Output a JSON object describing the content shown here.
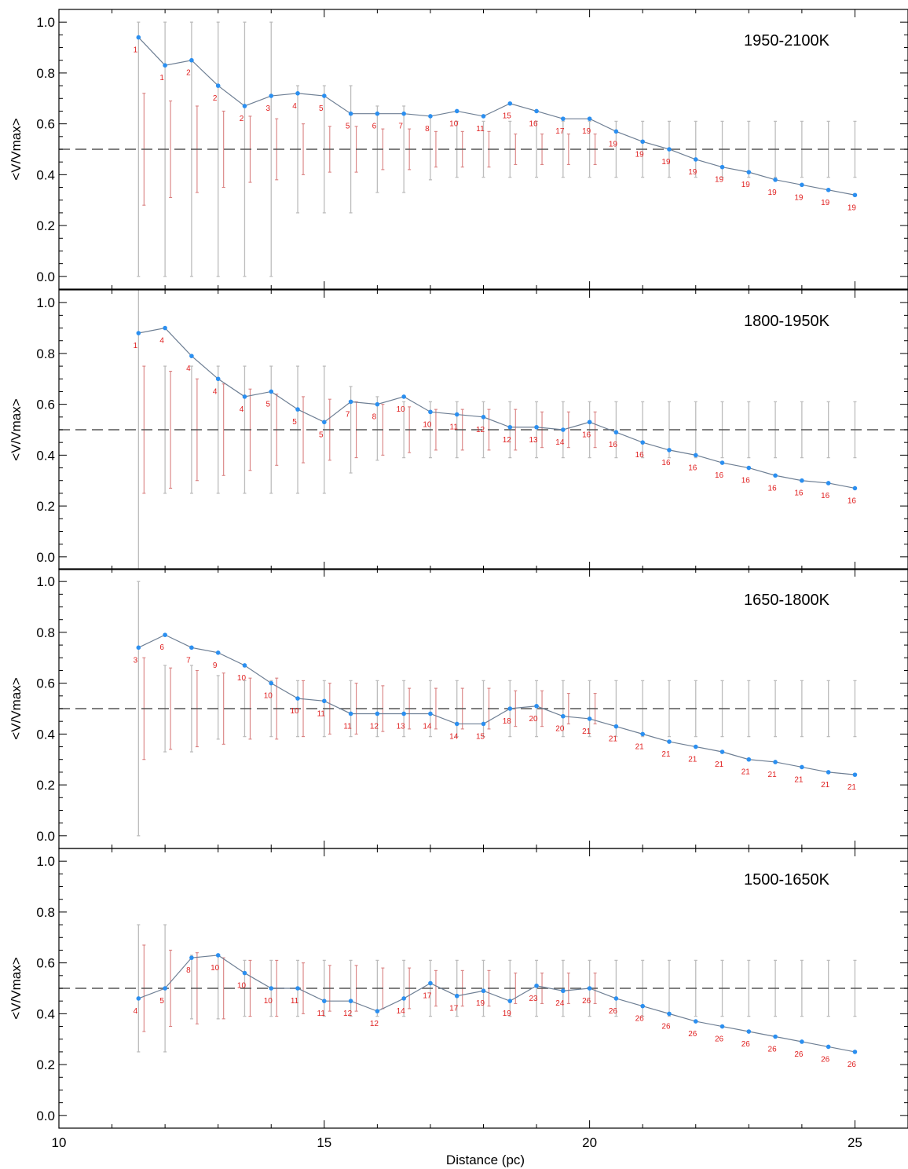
{
  "figure": {
    "xlabel": "Distance (pc)",
    "ylabel": "<V/Vmax>",
    "xlim": [
      10,
      26
    ],
    "ylim": [
      -0.05,
      1.05
    ],
    "xticks": [
      10,
      15,
      20,
      25
    ],
    "yticks": [
      0.0,
      0.2,
      0.4,
      0.6,
      0.8,
      1.0
    ],
    "ytick_labels": [
      "0.0",
      "0.2",
      "0.4",
      "0.6",
      "0.8",
      "1.0"
    ],
    "reference_line": 0.5,
    "colors": {
      "line": "#6e7f94",
      "points": "#2b8ff0",
      "counts": "#e02020",
      "theory_err": "#bdbdbd",
      "obs_err": "#d98080",
      "refline": "#555555",
      "axes": "#000000"
    }
  },
  "chart_data": [
    {
      "type": "line",
      "title": "1950-2100K",
      "x": [
        11.5,
        12,
        12.5,
        13,
        13.5,
        14,
        14.5,
        15,
        15.5,
        16,
        16.5,
        17,
        17.5,
        18,
        18.5,
        19,
        19.5,
        20,
        20.5,
        21,
        21.5,
        22,
        22.5,
        23,
        23.5,
        24,
        24.5,
        25
      ],
      "series": [
        {
          "values": [
            0.94,
            0.83,
            0.85,
            0.75,
            0.67,
            0.71,
            0.72,
            0.71,
            0.64,
            0.64,
            0.64,
            0.63,
            0.65,
            0.63,
            0.68,
            0.65,
            0.62,
            0.62,
            0.57,
            0.53,
            0.5,
            0.46,
            0.43,
            0.41,
            0.38,
            0.36,
            0.34,
            0.32
          ]
        }
      ],
      "point_labels": [
        "1",
        "1",
        "2",
        "2",
        "2",
        "3",
        "4",
        "5",
        "5",
        "6",
        "7",
        "8",
        "10",
        "11",
        "15",
        "16",
        "17",
        "19",
        "19",
        "19",
        "19",
        "19",
        "19",
        "19",
        "19",
        "19",
        "19",
        "19"
      ],
      "theory_errors": [
        [
          0.0,
          1.0
        ],
        [
          0.0,
          1.0
        ],
        [
          0.0,
          1.0
        ],
        [
          0.0,
          1.0
        ],
        [
          0.0,
          1.0
        ],
        [
          0.0,
          1.0
        ],
        [
          0.25,
          0.75
        ],
        [
          0.25,
          0.75
        ],
        [
          0.25,
          0.75
        ],
        [
          0.33,
          0.67
        ],
        [
          0.33,
          0.67
        ],
        [
          0.38,
          0.63
        ],
        [
          0.39,
          0.61
        ],
        [
          0.39,
          0.61
        ],
        [
          0.39,
          0.61
        ],
        [
          0.39,
          0.61
        ],
        [
          0.39,
          0.61
        ],
        [
          0.39,
          0.61
        ],
        [
          0.39,
          0.61
        ],
        [
          0.39,
          0.61
        ],
        [
          0.39,
          0.61
        ],
        [
          0.39,
          0.61
        ],
        [
          0.39,
          0.61
        ],
        [
          0.39,
          0.61
        ],
        [
          0.39,
          0.61
        ],
        [
          0.39,
          0.61
        ],
        [
          0.39,
          0.61
        ],
        [
          0.39,
          0.61
        ]
      ],
      "obs_errors": [
        [
          0.28,
          0.72
        ],
        [
          0.31,
          0.69
        ],
        [
          0.33,
          0.67
        ],
        [
          0.35,
          0.65
        ],
        [
          0.37,
          0.63
        ],
        [
          0.38,
          0.62
        ],
        [
          0.4,
          0.6
        ],
        [
          0.41,
          0.59
        ],
        [
          0.41,
          0.59
        ],
        [
          0.42,
          0.58
        ],
        [
          0.42,
          0.58
        ],
        [
          0.43,
          0.57
        ],
        [
          0.43,
          0.57
        ],
        [
          0.43,
          0.57
        ],
        [
          0.44,
          0.56
        ],
        [
          0.44,
          0.56
        ],
        [
          0.44,
          0.56
        ],
        [
          0.44,
          0.56
        ]
      ]
    },
    {
      "type": "line",
      "title": "1800-1950K",
      "x": [
        11.5,
        12,
        12.5,
        13,
        13.5,
        14,
        14.5,
        15,
        15.5,
        16,
        16.5,
        17,
        17.5,
        18,
        18.5,
        19,
        19.5,
        20,
        20.5,
        21,
        21.5,
        22,
        22.5,
        23,
        23.5,
        24,
        24.5,
        25
      ],
      "series": [
        {
          "values": [
            0.88,
            0.9,
            0.79,
            0.7,
            0.63,
            0.65,
            0.58,
            0.53,
            0.61,
            0.6,
            0.63,
            0.57,
            0.56,
            0.55,
            0.51,
            0.51,
            0.5,
            0.53,
            0.49,
            0.45,
            0.42,
            0.4,
            0.37,
            0.35,
            0.32,
            0.3,
            0.29,
            0.27
          ]
        }
      ],
      "point_labels": [
        "1",
        "4",
        "4",
        "4",
        "4",
        "5",
        "5",
        "5",
        "7",
        "8",
        "10",
        "10",
        "11",
        "12",
        "12",
        "13",
        "14",
        "16",
        "16",
        "16",
        "16",
        "16",
        "16",
        "16",
        "16",
        "16",
        "16",
        "16"
      ],
      "theory_errors": [
        [
          -0.05,
          1.05
        ],
        [
          0.25,
          0.75
        ],
        [
          0.25,
          0.75
        ],
        [
          0.25,
          0.75
        ],
        [
          0.25,
          0.75
        ],
        [
          0.25,
          0.75
        ],
        [
          0.25,
          0.75
        ],
        [
          0.25,
          0.75
        ],
        [
          0.33,
          0.67
        ],
        [
          0.38,
          0.63
        ],
        [
          0.39,
          0.61
        ],
        [
          0.39,
          0.61
        ],
        [
          0.39,
          0.61
        ],
        [
          0.39,
          0.61
        ],
        [
          0.39,
          0.61
        ],
        [
          0.39,
          0.61
        ],
        [
          0.39,
          0.61
        ],
        [
          0.39,
          0.61
        ],
        [
          0.39,
          0.61
        ],
        [
          0.39,
          0.61
        ],
        [
          0.39,
          0.61
        ],
        [
          0.39,
          0.61
        ],
        [
          0.39,
          0.61
        ],
        [
          0.39,
          0.61
        ],
        [
          0.39,
          0.61
        ],
        [
          0.39,
          0.61
        ],
        [
          0.39,
          0.61
        ],
        [
          0.39,
          0.61
        ]
      ],
      "obs_errors": [
        [
          0.25,
          0.75
        ],
        [
          0.27,
          0.73
        ],
        [
          0.3,
          0.7
        ],
        [
          0.32,
          0.68
        ],
        [
          0.34,
          0.66
        ],
        [
          0.36,
          0.64
        ],
        [
          0.37,
          0.63
        ],
        [
          0.38,
          0.62
        ],
        [
          0.39,
          0.61
        ],
        [
          0.4,
          0.6
        ],
        [
          0.41,
          0.59
        ],
        [
          0.42,
          0.58
        ],
        [
          0.42,
          0.58
        ],
        [
          0.42,
          0.58
        ],
        [
          0.42,
          0.58
        ],
        [
          0.43,
          0.57
        ],
        [
          0.43,
          0.57
        ],
        [
          0.43,
          0.57
        ]
      ]
    },
    {
      "type": "line",
      "title": "1650-1800K",
      "x": [
        11.5,
        12,
        12.5,
        13,
        13.5,
        14,
        14.5,
        15,
        15.5,
        16,
        16.5,
        17,
        17.5,
        18,
        18.5,
        19,
        19.5,
        20,
        20.5,
        21,
        21.5,
        22,
        22.5,
        23,
        23.5,
        24,
        24.5,
        25
      ],
      "series": [
        {
          "values": [
            0.74,
            0.79,
            0.74,
            0.72,
            0.67,
            0.6,
            0.54,
            0.53,
            0.48,
            0.48,
            0.48,
            0.48,
            0.44,
            0.44,
            0.5,
            0.51,
            0.47,
            0.46,
            0.43,
            0.4,
            0.37,
            0.35,
            0.33,
            0.3,
            0.29,
            0.27,
            0.25,
            0.24
          ]
        }
      ],
      "point_labels": [
        "3",
        "6",
        "7",
        "9",
        "10",
        "10",
        "10",
        "11",
        "11",
        "12",
        "13",
        "14",
        "14",
        "15",
        "18",
        "20",
        "20",
        "21",
        "21",
        "21",
        "21",
        "21",
        "21",
        "21",
        "21",
        "21",
        "21",
        "21"
      ],
      "theory_errors": [
        [
          0.0,
          1.0
        ],
        [
          0.33,
          0.67
        ],
        [
          0.33,
          0.67
        ],
        [
          0.38,
          0.63
        ],
        [
          0.39,
          0.61
        ],
        [
          0.39,
          0.61
        ],
        [
          0.39,
          0.61
        ],
        [
          0.39,
          0.61
        ],
        [
          0.39,
          0.61
        ],
        [
          0.39,
          0.61
        ],
        [
          0.39,
          0.61
        ],
        [
          0.39,
          0.61
        ],
        [
          0.39,
          0.61
        ],
        [
          0.39,
          0.61
        ],
        [
          0.39,
          0.61
        ],
        [
          0.39,
          0.61
        ],
        [
          0.39,
          0.61
        ],
        [
          0.39,
          0.61
        ],
        [
          0.39,
          0.61
        ],
        [
          0.39,
          0.61
        ],
        [
          0.39,
          0.61
        ],
        [
          0.39,
          0.61
        ],
        [
          0.39,
          0.61
        ],
        [
          0.39,
          0.61
        ],
        [
          0.39,
          0.61
        ],
        [
          0.39,
          0.61
        ],
        [
          0.39,
          0.61
        ],
        [
          0.39,
          0.61
        ]
      ],
      "obs_errors": [
        [
          0.3,
          0.7
        ],
        [
          0.34,
          0.66
        ],
        [
          0.35,
          0.65
        ],
        [
          0.36,
          0.64
        ],
        [
          0.38,
          0.62
        ],
        [
          0.38,
          0.62
        ],
        [
          0.39,
          0.61
        ],
        [
          0.4,
          0.6
        ],
        [
          0.4,
          0.6
        ],
        [
          0.41,
          0.59
        ],
        [
          0.42,
          0.58
        ],
        [
          0.42,
          0.58
        ],
        [
          0.42,
          0.58
        ],
        [
          0.42,
          0.58
        ],
        [
          0.43,
          0.57
        ],
        [
          0.43,
          0.57
        ],
        [
          0.44,
          0.56
        ],
        [
          0.44,
          0.56
        ]
      ]
    },
    {
      "type": "line",
      "title": "1500-1650K",
      "x": [
        11.5,
        12,
        12.5,
        13,
        13.5,
        14,
        14.5,
        15,
        15.5,
        16,
        16.5,
        17,
        17.5,
        18,
        18.5,
        19,
        19.5,
        20,
        20.5,
        21,
        21.5,
        22,
        22.5,
        23,
        23.5,
        24,
        24.5,
        25
      ],
      "series": [
        {
          "values": [
            0.46,
            0.5,
            0.62,
            0.63,
            0.56,
            0.5,
            0.5,
            0.45,
            0.45,
            0.41,
            0.46,
            0.52,
            0.47,
            0.49,
            0.45,
            0.51,
            0.49,
            0.5,
            0.46,
            0.43,
            0.4,
            0.37,
            0.35,
            0.33,
            0.31,
            0.29,
            0.27,
            0.25
          ]
        }
      ],
      "point_labels": [
        "4",
        "5",
        "8",
        "10",
        "10",
        "10",
        "11",
        "11",
        "12",
        "12",
        "14",
        "17",
        "17",
        "19",
        "19",
        "23",
        "24",
        "26",
        "26",
        "26",
        "26",
        "26",
        "26",
        "26",
        "26",
        "26",
        "26",
        "26"
      ],
      "theory_errors": [
        [
          0.25,
          0.75
        ],
        [
          0.25,
          0.75
        ],
        [
          0.38,
          0.63
        ],
        [
          0.38,
          0.63
        ],
        [
          0.39,
          0.61
        ],
        [
          0.39,
          0.61
        ],
        [
          0.39,
          0.61
        ],
        [
          0.39,
          0.61
        ],
        [
          0.39,
          0.61
        ],
        [
          0.39,
          0.61
        ],
        [
          0.39,
          0.61
        ],
        [
          0.39,
          0.61
        ],
        [
          0.39,
          0.61
        ],
        [
          0.39,
          0.61
        ],
        [
          0.39,
          0.61
        ],
        [
          0.39,
          0.61
        ],
        [
          0.39,
          0.61
        ],
        [
          0.39,
          0.61
        ],
        [
          0.39,
          0.61
        ],
        [
          0.39,
          0.61
        ],
        [
          0.39,
          0.61
        ],
        [
          0.39,
          0.61
        ],
        [
          0.39,
          0.61
        ],
        [
          0.39,
          0.61
        ],
        [
          0.39,
          0.61
        ],
        [
          0.39,
          0.61
        ],
        [
          0.39,
          0.61
        ],
        [
          0.39,
          0.61
        ]
      ],
      "obs_errors": [
        [
          0.33,
          0.67
        ],
        [
          0.35,
          0.65
        ],
        [
          0.36,
          0.64
        ],
        [
          0.38,
          0.62
        ],
        [
          0.39,
          0.61
        ],
        [
          0.39,
          0.61
        ],
        [
          0.4,
          0.6
        ],
        [
          0.41,
          0.59
        ],
        [
          0.41,
          0.59
        ],
        [
          0.42,
          0.58
        ],
        [
          0.42,
          0.58
        ],
        [
          0.43,
          0.57
        ],
        [
          0.43,
          0.57
        ],
        [
          0.43,
          0.57
        ],
        [
          0.44,
          0.56
        ],
        [
          0.44,
          0.56
        ],
        [
          0.44,
          0.56
        ],
        [
          0.44,
          0.56
        ]
      ]
    }
  ]
}
